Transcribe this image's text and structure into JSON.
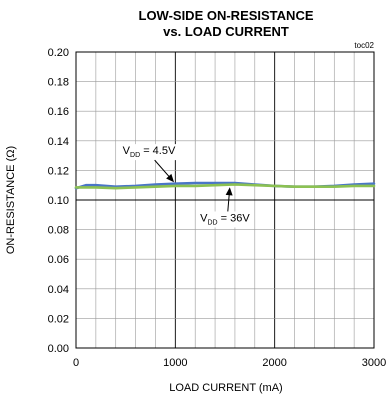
{
  "chart_data": {
    "type": "line",
    "title_lines": [
      "LOW-SIDE ON-RESISTANCE",
      "vs. LOAD CURRENT"
    ],
    "tag": "toc02",
    "xlabel": "LOAD CURRENT (mA)",
    "ylabel": "ON-RESISTANCE (Ω)",
    "xlim": [
      0,
      3000
    ],
    "ylim": [
      0,
      0.2
    ],
    "xticks": [
      0,
      1000,
      2000,
      3000
    ],
    "xtick_labels": [
      "0",
      "1000",
      "2000",
      "3000"
    ],
    "yticks": [
      0,
      0.02,
      0.04,
      0.06,
      0.08,
      0.1,
      0.12,
      0.14,
      0.16,
      0.18,
      0.2
    ],
    "ytick_labels": [
      "0.00",
      "0.02",
      "0.04",
      "0.06",
      "0.08",
      "0.10",
      "0.12",
      "0.14",
      "0.16",
      "0.18",
      "0.20"
    ],
    "x_grid_step": 200,
    "grid": true,
    "series": [
      {
        "name": "VDD = 4.5V",
        "color": "#4a76c6",
        "x": [
          0,
          100,
          200,
          400,
          600,
          800,
          1000,
          1200,
          1400,
          1600,
          1800,
          2000,
          2200,
          2400,
          2600,
          2800,
          3000
        ],
        "y": [
          0.108,
          0.11,
          0.11,
          0.109,
          0.1095,
          0.1105,
          0.111,
          0.1115,
          0.1115,
          0.1115,
          0.1105,
          0.1095,
          0.109,
          0.109,
          0.1095,
          0.1105,
          0.111
        ]
      },
      {
        "name": "VDD = 36V",
        "color": "#8cc152",
        "x": [
          0,
          100,
          200,
          400,
          600,
          800,
          1000,
          1200,
          1400,
          1600,
          1800,
          2000,
          2200,
          2400,
          2600,
          2800,
          3000
        ],
        "y": [
          0.1085,
          0.1085,
          0.1085,
          0.108,
          0.1085,
          0.109,
          0.1095,
          0.1095,
          0.11,
          0.1105,
          0.11,
          0.1095,
          0.109,
          0.109,
          0.109,
          0.1095,
          0.1095
        ]
      }
    ],
    "annotations": [
      {
        "main": "V",
        "sub": "DD",
        "rest": " = 4.5V",
        "series": 0,
        "x": 1000,
        "y": 0.111,
        "text_x": 470,
        "text_y": 0.131
      },
      {
        "main": "V",
        "sub": "DD",
        "rest": " = 36V",
        "series": 1,
        "x": 1550,
        "y": 0.11,
        "text_x": 1250,
        "text_y": 0.0855
      }
    ]
  }
}
